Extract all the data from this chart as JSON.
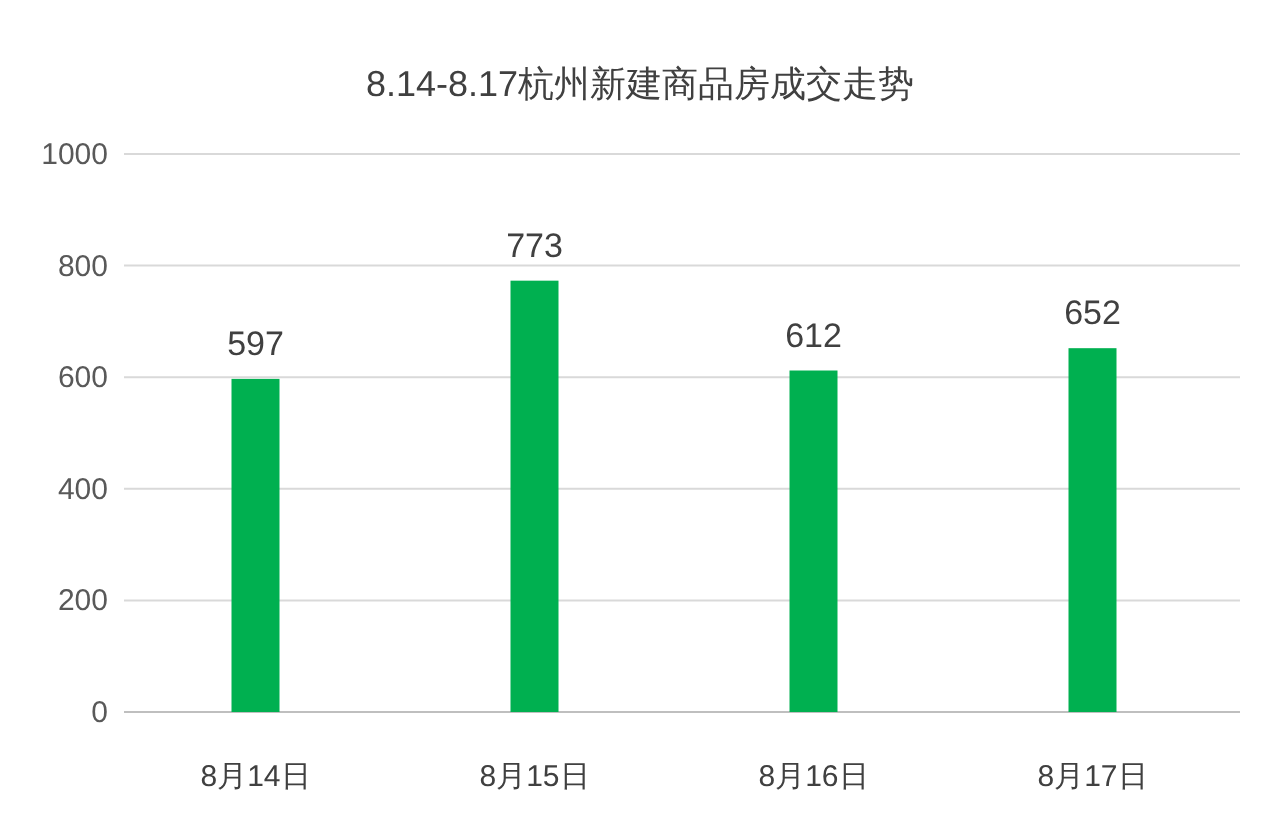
{
  "chart_data": {
    "type": "bar",
    "title": "8.14-8.17杭州新建商品房成交走势",
    "categories": [
      "8月14日",
      "8月15日",
      "8月16日",
      "8月17日"
    ],
    "values": [
      597,
      773,
      612,
      652
    ],
    "color": "#00b050",
    "ylim": [
      0,
      1000
    ],
    "yticks": [
      0,
      200,
      400,
      600,
      800,
      1000
    ],
    "grid": "y",
    "data_labels": true
  }
}
